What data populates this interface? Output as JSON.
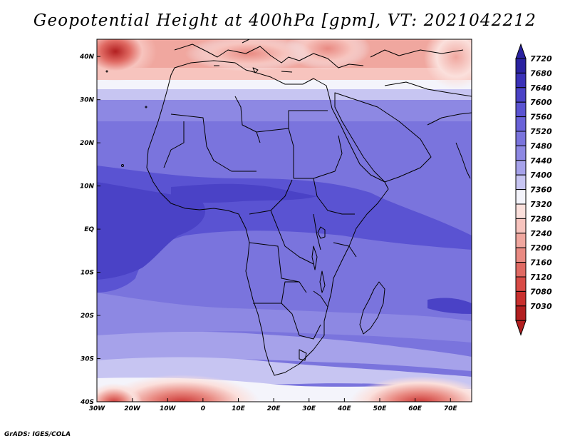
{
  "title": "Geopotential Height at 400hPa [gpm], VT: 2021042212",
  "footer": "GrADS: IGES/COLA",
  "map": {
    "lon_range": [
      -30,
      76
    ],
    "lat_range": [
      -40,
      44
    ],
    "lon_ticks": [
      {
        "value": -30,
        "label": "30W"
      },
      {
        "value": -20,
        "label": "20W"
      },
      {
        "value": -10,
        "label": "10W"
      },
      {
        "value": 0,
        "label": "0"
      },
      {
        "value": 10,
        "label": "10E"
      },
      {
        "value": 20,
        "label": "20E"
      },
      {
        "value": 30,
        "label": "30E"
      },
      {
        "value": 40,
        "label": "40E"
      },
      {
        "value": 50,
        "label": "50E"
      },
      {
        "value": 60,
        "label": "60E"
      },
      {
        "value": 70,
        "label": "70E"
      }
    ],
    "lat_ticks": [
      {
        "value": 40,
        "label": "40N"
      },
      {
        "value": 30,
        "label": "30N"
      },
      {
        "value": 20,
        "label": "20N"
      },
      {
        "value": 10,
        "label": "10N"
      },
      {
        "value": 0,
        "label": "EQ"
      },
      {
        "value": -10,
        "label": "10S"
      },
      {
        "value": -20,
        "label": "20S"
      },
      {
        "value": -30,
        "label": "30S"
      },
      {
        "value": -40,
        "label": "40S"
      }
    ]
  },
  "colorbar": {
    "unit": "gpm",
    "levels": [
      {
        "label": "7720",
        "color": "#2a22a0"
      },
      {
        "label": "7680",
        "color": "#3a31b8"
      },
      {
        "label": "7640",
        "color": "#4a42c6"
      },
      {
        "label": "7600",
        "color": "#5a53d2"
      },
      {
        "label": "7560",
        "color": "#6962d8"
      },
      {
        "label": "7520",
        "color": "#7a74dd"
      },
      {
        "label": "7480",
        "color": "#8d88e3"
      },
      {
        "label": "7440",
        "color": "#a6a2ea"
      },
      {
        "label": "7400",
        "color": "#c7c5f2"
      },
      {
        "label": "7360",
        "color": "#f4f4fb"
      },
      {
        "label": "7320",
        "color": "#fbe0dc"
      },
      {
        "label": "7280",
        "color": "#f7c4be"
      },
      {
        "label": "7240",
        "color": "#f0a79f"
      },
      {
        "label": "7200",
        "color": "#e98a82"
      },
      {
        "label": "7160",
        "color": "#e06a63"
      },
      {
        "label": "7120",
        "color": "#d84b46"
      },
      {
        "label": "7080",
        "color": "#c9302e"
      },
      {
        "label": "7030",
        "color": "#b21f20"
      }
    ],
    "top_color": "#2a22a0",
    "bottom_color": "#b21f20"
  }
}
